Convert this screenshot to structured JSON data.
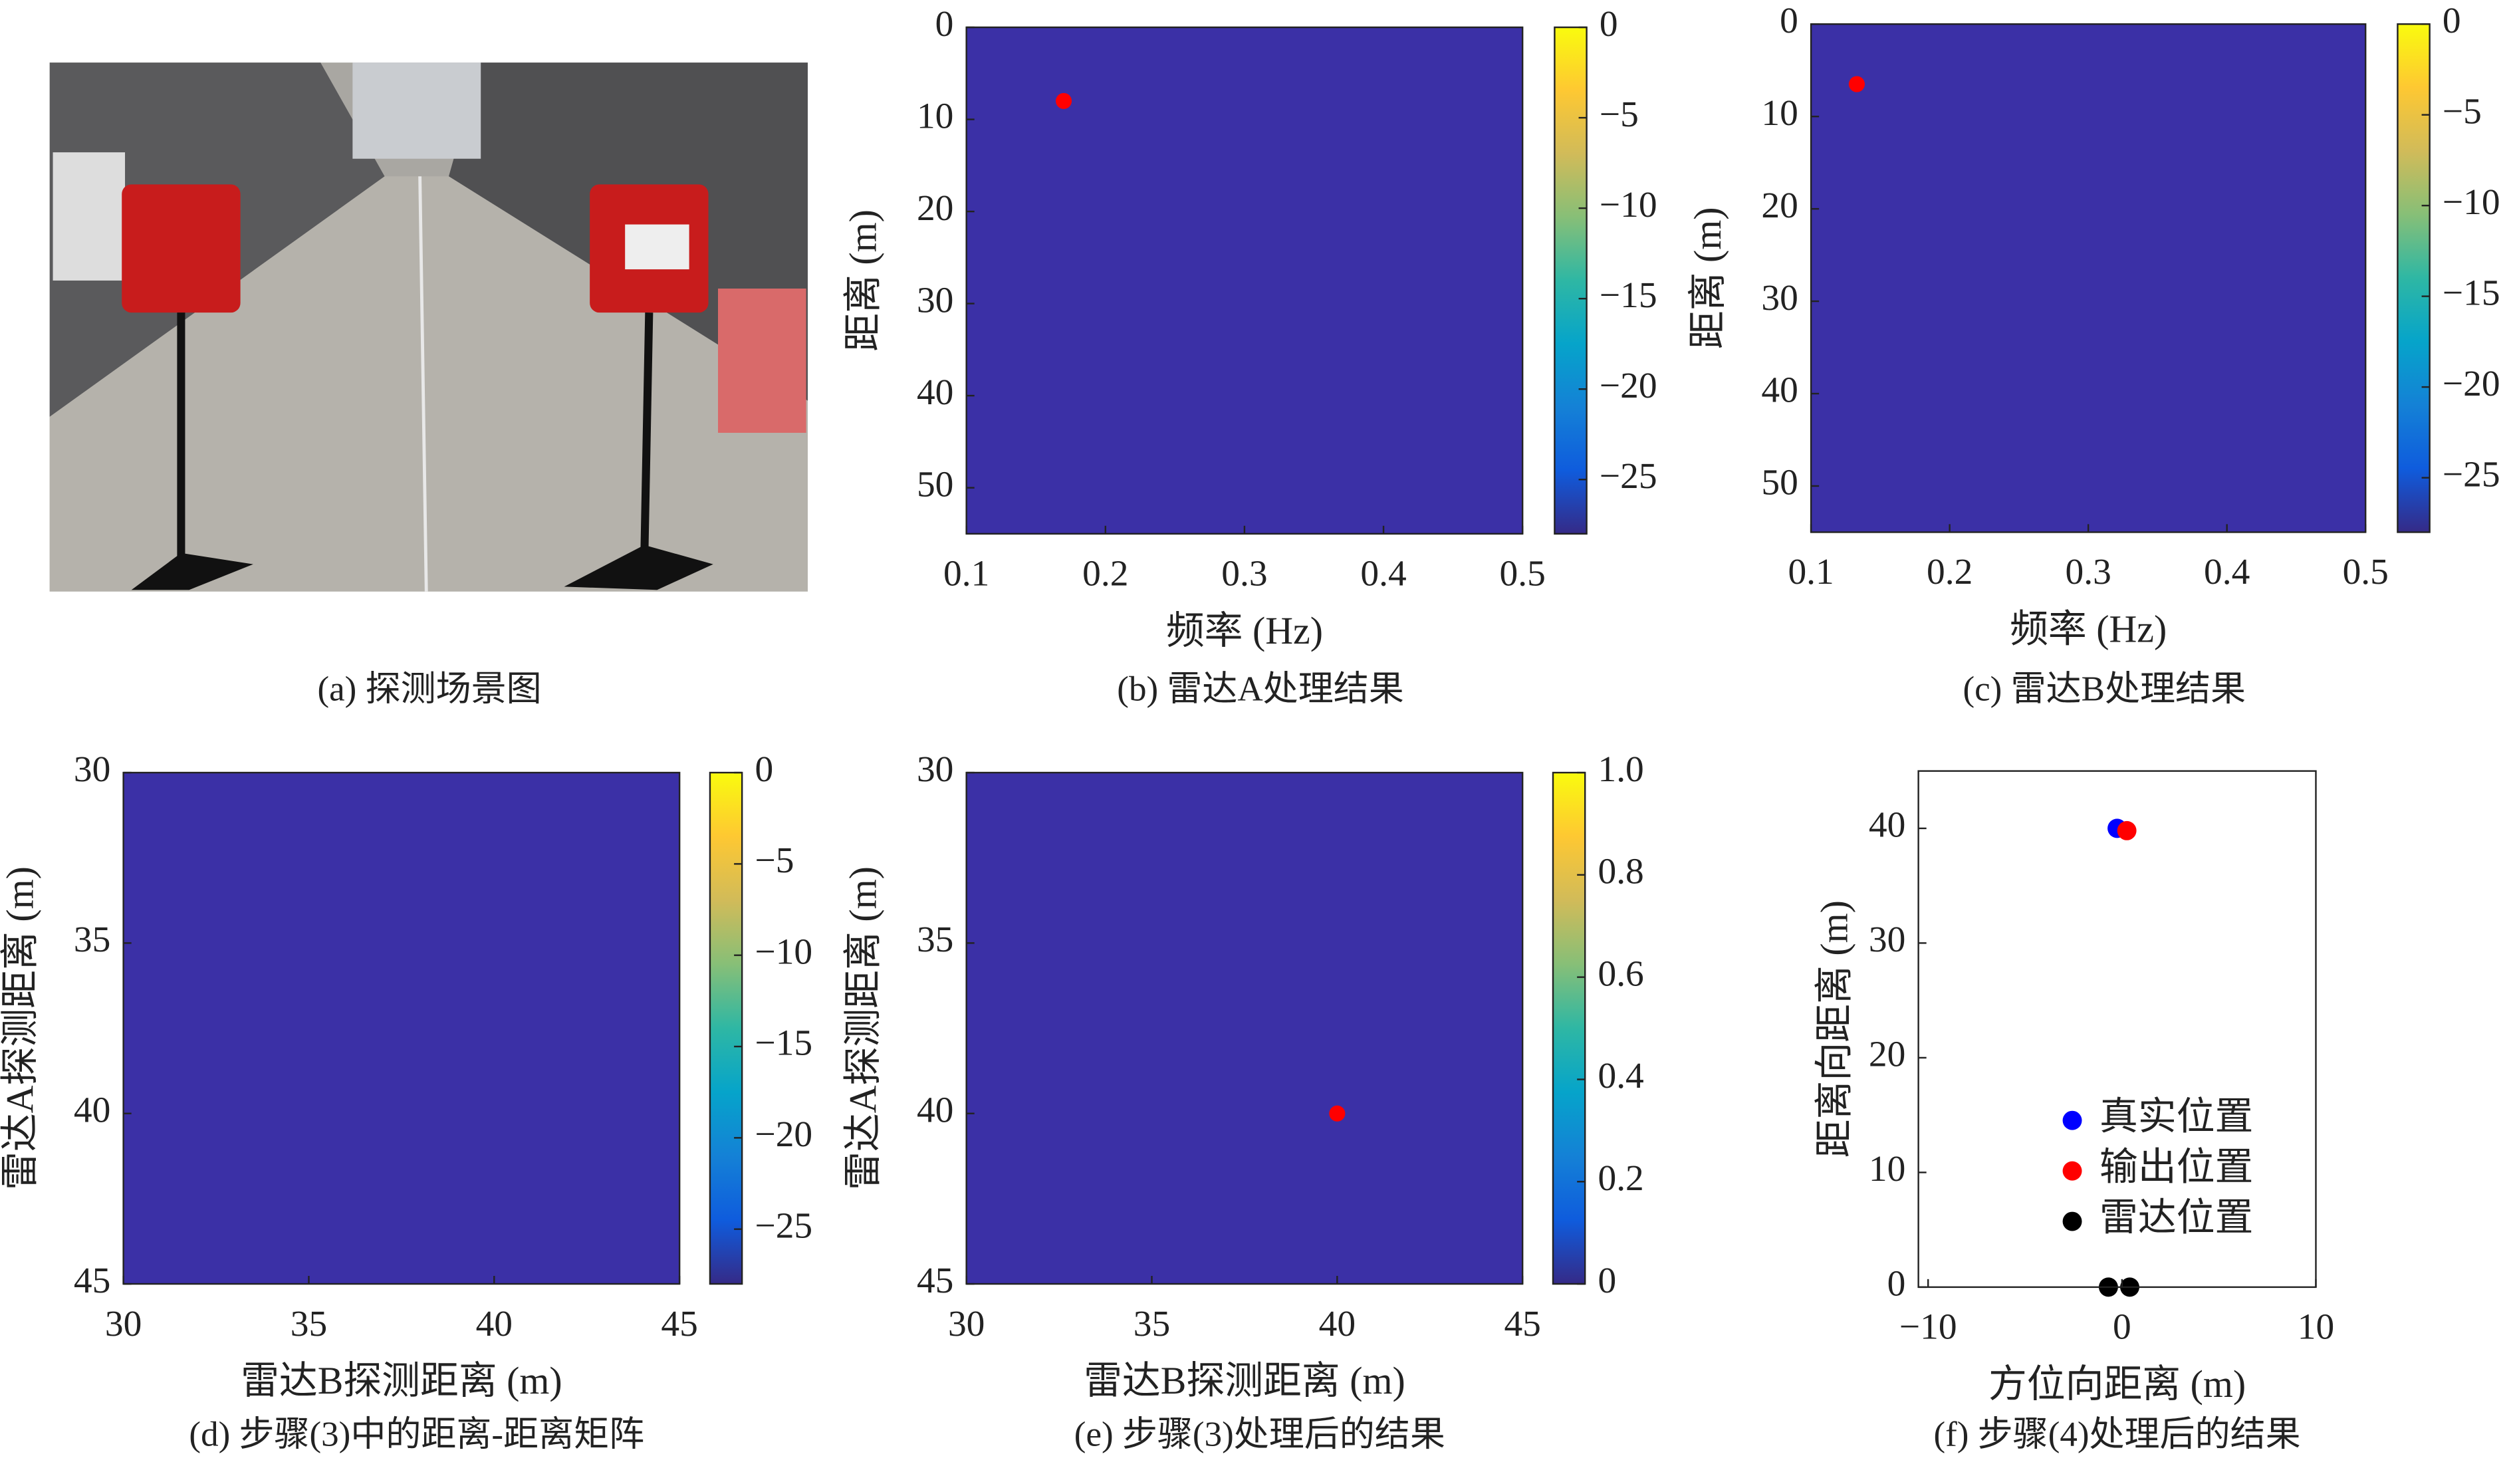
{
  "photo": {
    "caption": "(a) 探测场景图"
  },
  "chart_data": [
    {
      "type": "heatmap",
      "caption": "(b) 雷达A处理结果",
      "xlabel": "频率 (Hz)",
      "ylabel": "距离 (m)",
      "color": "#3b30a6",
      "xlim": [
        0.1,
        0.5
      ],
      "xticks": [
        0.1,
        0.2,
        0.3,
        0.4,
        0.5
      ],
      "ylim": [
        55,
        0
      ],
      "yticks": [
        0,
        10,
        20,
        30,
        40,
        50
      ],
      "clim": [
        -28,
        0
      ],
      "cticks": [
        0,
        {
          "value": -5,
          "label": "−5"
        },
        {
          "value": -10,
          "label": "−10"
        },
        {
          "value": -15,
          "label": "−15"
        },
        {
          "value": -20,
          "label": "−20"
        },
        {
          "value": -25,
          "label": "−25"
        }
      ],
      "marker": {
        "x": 0.17,
        "y": 8,
        "color": "#ff0000"
      }
    },
    {
      "type": "heatmap",
      "caption": "(c) 雷达B处理结果",
      "xlabel": "频率 (Hz)",
      "ylabel": "距离 (m)",
      "color": "#3b30a6",
      "xlim": [
        0.1,
        0.5
      ],
      "xticks": [
        0.1,
        0.2,
        0.3,
        0.4,
        0.5
      ],
      "ylim": [
        55,
        0
      ],
      "yticks": [
        0,
        10,
        20,
        30,
        40,
        50
      ],
      "clim": [
        -28,
        0
      ],
      "cticks": [
        0,
        {
          "value": -5,
          "label": "−5"
        },
        {
          "value": -10,
          "label": "−10"
        },
        {
          "value": -15,
          "label": "−15"
        },
        {
          "value": -20,
          "label": "−20"
        },
        {
          "value": -25,
          "label": "−25"
        }
      ],
      "marker": {
        "x": 0.133,
        "y": 6.5,
        "color": "#ff0000"
      }
    },
    {
      "type": "heatmap",
      "caption": "(d) 步骤(3)中的距离-距离矩阵",
      "xlabel": "雷达B探测距离 (m)",
      "ylabel": "雷达A探测距离 (m)",
      "color": "#3b30a6",
      "xlim": [
        30,
        45
      ],
      "xticks": [
        30,
        35,
        40,
        45
      ],
      "ylim": [
        45,
        30
      ],
      "yticks": [
        30,
        35,
        40,
        45
      ],
      "clim": [
        -28,
        0
      ],
      "cticks": [
        0,
        {
          "value": -5,
          "label": "−5"
        },
        {
          "value": -10,
          "label": "−10"
        },
        {
          "value": -15,
          "label": "−15"
        },
        {
          "value": -20,
          "label": "−20"
        },
        {
          "value": -25,
          "label": "−25"
        }
      ]
    },
    {
      "type": "heatmap",
      "caption": "(e) 步骤(3)处理后的结果",
      "xlabel": "雷达B探测距离 (m)",
      "ylabel": "雷达A探测距离 (m)",
      "color": "#3b30a6",
      "xlim": [
        30,
        45
      ],
      "xticks": [
        30,
        35,
        40,
        45
      ],
      "ylim": [
        45,
        30
      ],
      "yticks": [
        30,
        35,
        40,
        45
      ],
      "clim": [
        0,
        1
      ],
      "cticks": [
        0,
        0.2,
        0.4,
        0.6,
        0.8,
        {
          "value": 1,
          "label": "1.0"
        }
      ],
      "marker": {
        "x": 40,
        "y": 40,
        "color": "#ff0000"
      }
    },
    {
      "type": "scatter",
      "caption": "(f) 步骤(4)处理后的结果",
      "xlabel": "方位向距离 (m)",
      "ylabel": "距离向距离 (m)",
      "xlim": [
        -10.5,
        10
      ],
      "xticks": [
        {
          "value": -10,
          "label": "−10"
        },
        0,
        10
      ],
      "ylim": [
        0,
        45
      ],
      "yticks": [
        0,
        10,
        20,
        30,
        40
      ],
      "series": [
        {
          "name": "真实位置",
          "color": "#0000ff",
          "x": [
            -0.25
          ],
          "y": [
            40
          ]
        },
        {
          "name": "输出位置",
          "color": "#ff0000",
          "x": [
            0.25
          ],
          "y": [
            39.8
          ]
        },
        {
          "name": "雷达位置",
          "color": "#000000",
          "x": [
            -0.7,
            0.4
          ],
          "y": [
            0,
            0
          ]
        }
      ]
    }
  ]
}
